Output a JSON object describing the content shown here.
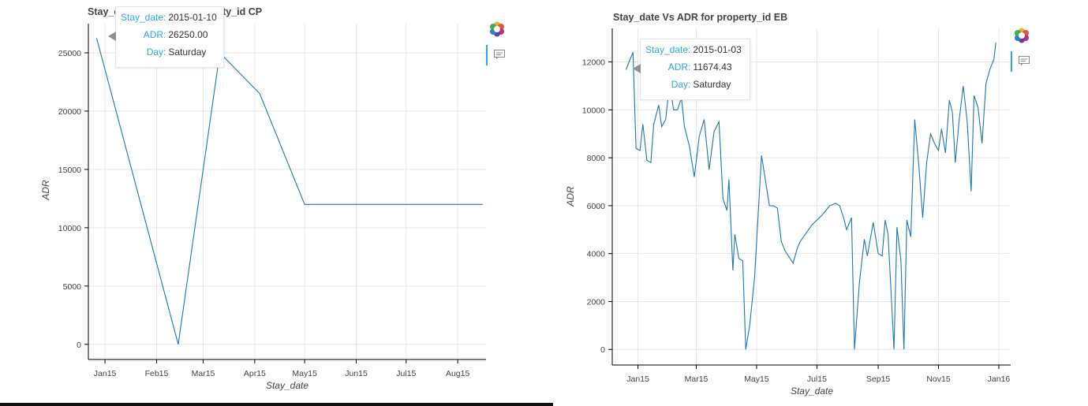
{
  "chart_data": [
    {
      "type": "line",
      "title": "Stay_date Vs ADR for property_id CP",
      "xlabel": "Stay_date",
      "ylabel": "ADR",
      "x_type": "date",
      "xlim": [
        "2015-01-05",
        "2015-09-01"
      ],
      "ylim": [
        -1300,
        27500
      ],
      "x_ticks": [
        {
          "label": "Jan15",
          "date": "2015-01-15"
        },
        {
          "label": "Feb15",
          "date": "2015-02-15"
        },
        {
          "label": "Mar15",
          "date": "2015-03-15"
        },
        {
          "label": "Apr15",
          "date": "2015-04-15"
        },
        {
          "label": "May15",
          "date": "2015-05-15"
        },
        {
          "label": "Jun15",
          "date": "2015-06-15"
        },
        {
          "label": "Jul15",
          "date": "2015-07-15"
        },
        {
          "label": "Aug15",
          "date": "2015-08-15"
        }
      ],
      "y_ticks": [
        0,
        5000,
        10000,
        15000,
        20000,
        25000
      ],
      "grid": true,
      "series": [
        {
          "color": "#1f77b4",
          "x": [
            "2015-01-10",
            "2015-02-28",
            "2015-03-25",
            "2015-04-18",
            "2015-05-15",
            "2015-08-30"
          ],
          "y": [
            26250,
            0,
            25000,
            21500,
            12000,
            12000
          ]
        }
      ],
      "tooltip": {
        "rows": [
          {
            "key": "Stay_date:",
            "value": "2015-01-10"
          },
          {
            "key": "ADR:",
            "value": "26250.00"
          },
          {
            "key": "Day:",
            "value": "Saturday"
          }
        ]
      }
    },
    {
      "type": "line",
      "title": "Stay_date Vs ADR for property_id EB",
      "xlabel": "Stay_date",
      "ylabel": "ADR",
      "x_type": "date",
      "xlim": [
        "2014-12-20",
        "2016-01-27"
      ],
      "ylim": [
        -650,
        13400
      ],
      "x_ticks": [
        {
          "label": "Jan15",
          "date": "2015-01-15"
        },
        {
          "label": "Mar15",
          "date": "2015-03-15"
        },
        {
          "label": "May15",
          "date": "2015-05-15"
        },
        {
          "label": "Jul15",
          "date": "2015-07-15"
        },
        {
          "label": "Sep15",
          "date": "2015-09-15"
        },
        {
          "label": "Nov15",
          "date": "2015-11-15"
        },
        {
          "label": "Jan16",
          "date": "2016-01-15"
        }
      ],
      "y_ticks": [
        0,
        2000,
        4000,
        6000,
        8000,
        10000,
        12000
      ],
      "grid": true,
      "series": [
        {
          "color": "#1f77b4",
          "x": [
            "2015-01-03",
            "2015-01-06",
            "2015-01-10",
            "2015-01-13",
            "2015-01-17",
            "2015-01-20",
            "2015-01-24",
            "2015-01-28",
            "2015-01-31",
            "2015-02-05",
            "2015-02-08",
            "2015-02-12",
            "2015-02-16",
            "2015-02-20",
            "2015-02-24",
            "2015-02-28",
            "2015-03-03",
            "2015-03-08",
            "2015-03-13",
            "2015-03-18",
            "2015-03-23",
            "2015-03-28",
            "2015-04-02",
            "2015-04-07",
            "2015-04-11",
            "2015-04-15",
            "2015-04-17",
            "2015-04-21",
            "2015-04-23",
            "2015-04-27",
            "2015-05-01",
            "2015-05-04",
            "2015-05-08",
            "2015-05-13",
            "2015-05-20",
            "2015-05-28",
            "2015-06-01",
            "2015-06-05",
            "2015-06-09",
            "2015-06-13",
            "2015-06-21",
            "2015-06-25",
            "2015-06-28",
            "2015-07-10",
            "2015-07-20",
            "2015-07-28",
            "2015-08-03",
            "2015-08-07",
            "2015-08-11",
            "2015-08-14",
            "2015-08-19",
            "2015-08-22",
            "2015-08-27",
            "2015-09-01",
            "2015-09-04",
            "2015-09-10",
            "2015-09-15",
            "2015-09-19",
            "2015-09-22",
            "2015-09-25",
            "2015-10-01",
            "2015-10-04",
            "2015-10-08",
            "2015-10-11",
            "2015-10-14",
            "2015-10-18",
            "2015-10-22",
            "2015-10-26",
            "2015-10-30",
            "2015-11-03",
            "2015-11-07",
            "2015-11-11",
            "2015-11-15",
            "2015-11-18",
            "2015-11-22",
            "2015-11-26",
            "2015-11-29",
            "2015-12-02",
            "2015-12-06",
            "2015-12-10",
            "2015-12-14",
            "2015-12-18",
            "2015-12-21",
            "2015-12-25",
            "2015-12-29",
            "2016-01-02",
            "2016-01-06",
            "2016-01-10",
            "2016-01-12"
          ],
          "y": [
            11674,
            12000,
            12400,
            8400,
            8300,
            9400,
            7900,
            7800,
            9400,
            10200,
            9300,
            9600,
            11100,
            10000,
            10000,
            10500,
            9300,
            8500,
            7200,
            8900,
            9600,
            7500,
            9100,
            9500,
            6300,
            5800,
            7100,
            3300,
            4800,
            3800,
            3700,
            0,
            1000,
            3000,
            8100,
            6000,
            6000,
            5900,
            4500,
            4100,
            3600,
            4200,
            4500,
            5200,
            5600,
            6000,
            6100,
            6000,
            5500,
            5000,
            5500,
            0,
            2800,
            4600,
            3900,
            5300,
            4000,
            3900,
            5400,
            4800,
            0,
            5100,
            3700,
            0,
            5400,
            4700,
            9600,
            7700,
            5500,
            7800,
            9000,
            8600,
            8300,
            9200,
            8200,
            10400,
            9900,
            7800,
            9600,
            11000,
            9500,
            6600,
            10600,
            10100,
            8600,
            11100,
            11700,
            12100,
            12800
          ]
        }
      ],
      "tooltip": {
        "rows": [
          {
            "key": "Stay_date:",
            "value": "2015-01-03"
          },
          {
            "key": "ADR:",
            "value": "11674.43"
          },
          {
            "key": "Day:",
            "value": "Saturday"
          }
        ]
      }
    }
  ]
}
